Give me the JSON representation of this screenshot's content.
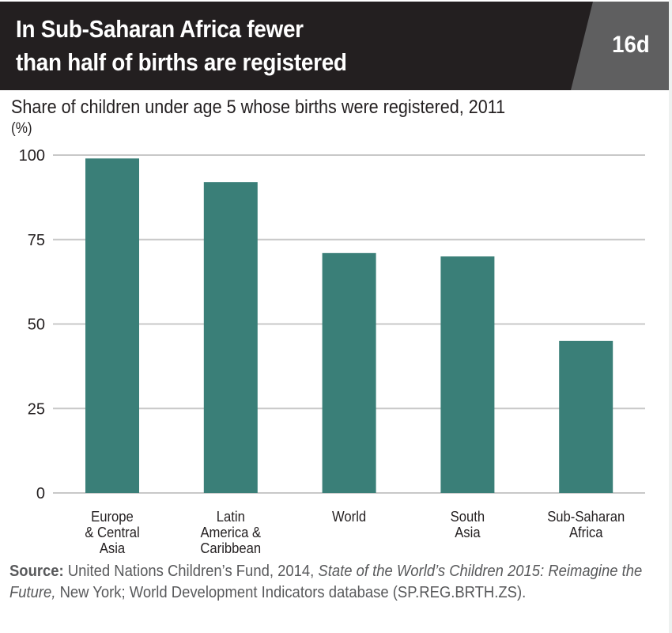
{
  "header": {
    "title_line1": "In Sub-Saharan Africa fewer",
    "title_line2": "than half of births are registered",
    "badge": "16d"
  },
  "colors": {
    "header_bg": "#231f20",
    "badge_bg": "#5f5f60",
    "bar": "#3a7f78",
    "grid": "#c8c8c8"
  },
  "chart_data": {
    "type": "bar",
    "title": "Share of children under age 5 whose births were registered, 2011",
    "ylabel": "(%)",
    "xlabel": "",
    "categories": [
      [
        "Europe",
        "& Central",
        "Asia"
      ],
      [
        "Latin",
        "America &",
        "Caribbean"
      ],
      [
        "World"
      ],
      [
        "South",
        "Asia"
      ],
      [
        "Sub-Saharan",
        "Africa"
      ]
    ],
    "category_names": [
      "Europe & Central Asia",
      "Latin America & Caribbean",
      "World",
      "South Asia",
      "Sub-Saharan Africa"
    ],
    "values": [
      99,
      92,
      71,
      70,
      45
    ],
    "ylim": [
      0,
      100
    ],
    "yticks": [
      0,
      25,
      50,
      75,
      100
    ],
    "grid": true,
    "legend": "none"
  },
  "source": {
    "label": "Source:",
    "text_plain1": " United Nations Children’s Fund, 2014, ",
    "text_italic": "State of the World’s Children 2015: Reimagine the Future,",
    "text_plain2": " New York; World Development Indicators database (SP.REG.BRTH.ZS)."
  }
}
